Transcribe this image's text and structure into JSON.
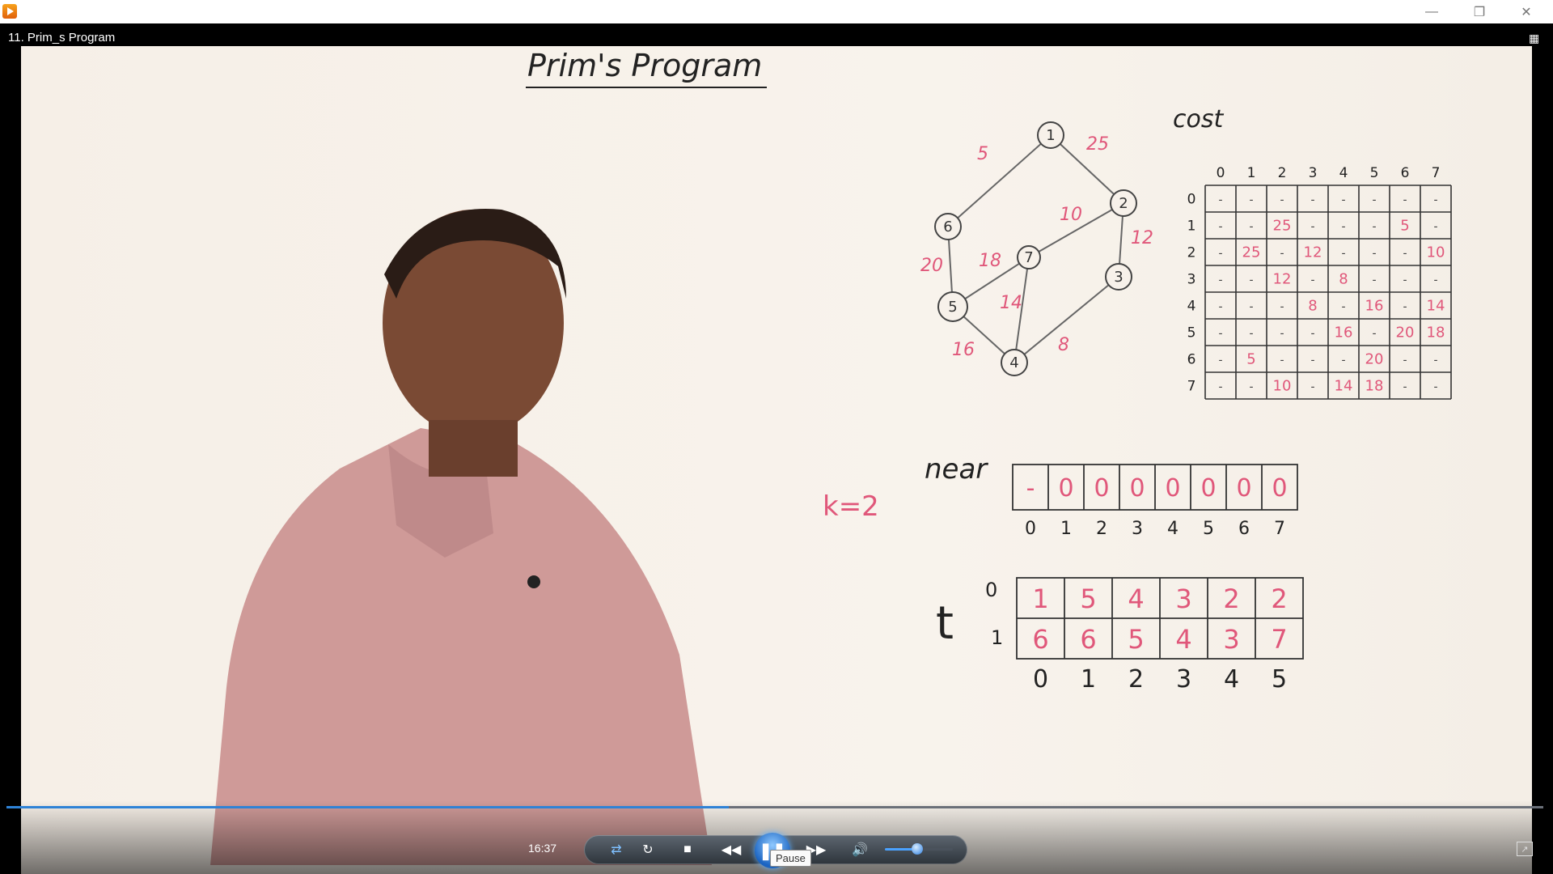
{
  "window": {
    "title_icon": "media-player-icon",
    "minimize_icon": "minimize-icon",
    "restore_icon": "restore-icon",
    "close_icon": "close-icon"
  },
  "video": {
    "title": "11. Prim_s Program",
    "progress_fraction": 0.47
  },
  "board": {
    "heading": "Prim's Program",
    "graph": {
      "vertices": [
        "1",
        "2",
        "3",
        "4",
        "5",
        "6",
        "7"
      ],
      "edges": [
        {
          "from": "1",
          "to": "6",
          "weight": "5"
        },
        {
          "from": "1",
          "to": "2",
          "weight": "25"
        },
        {
          "from": "2",
          "to": "7",
          "weight": "10"
        },
        {
          "from": "2",
          "to": "3",
          "weight": "12"
        },
        {
          "from": "6",
          "to": "5",
          "weight": "20"
        },
        {
          "from": "7",
          "to": "5",
          "weight": "18"
        },
        {
          "from": "7",
          "to": "4",
          "weight": "14"
        },
        {
          "from": "5",
          "to": "4",
          "weight": "16"
        },
        {
          "from": "3",
          "to": "4",
          "weight": "8"
        }
      ]
    },
    "cost": {
      "label": "cost",
      "col_headers": [
        "0",
        "1",
        "2",
        "3",
        "4",
        "5",
        "6",
        "7"
      ],
      "row_headers": [
        "0",
        "1",
        "2",
        "3",
        "4",
        "5",
        "6",
        "7"
      ],
      "rows": [
        [
          "-",
          "-",
          "-",
          "-",
          "-",
          "-",
          "-",
          "-"
        ],
        [
          "-",
          "-",
          "25",
          "-",
          "-",
          "-",
          "5",
          "-"
        ],
        [
          "-",
          "25",
          "-",
          "12",
          "-",
          "-",
          "-",
          "10"
        ],
        [
          "-",
          "-",
          "12",
          "-",
          "8",
          "-",
          "-",
          "-"
        ],
        [
          "-",
          "-",
          "-",
          "8",
          "-",
          "16",
          "-",
          "14"
        ],
        [
          "-",
          "-",
          "-",
          "-",
          "16",
          "-",
          "20",
          "18"
        ],
        [
          "-",
          "5",
          "-",
          "-",
          "-",
          "20",
          "-",
          "-"
        ],
        [
          "-",
          "-",
          "10",
          "-",
          "14",
          "18",
          "-",
          "-"
        ]
      ]
    },
    "near": {
      "label": "near",
      "values": [
        "-",
        "0",
        "0",
        "0",
        "0",
        "0",
        "0",
        "0"
      ],
      "indices": [
        "0",
        "1",
        "2",
        "3",
        "4",
        "5",
        "6",
        "7"
      ]
    },
    "k_note": "k=2",
    "t": {
      "label": "t",
      "row_labels": [
        "0",
        "1"
      ],
      "row0": [
        "1",
        "5",
        "4",
        "3",
        "2",
        "2"
      ],
      "row1": [
        "6",
        "6",
        "5",
        "4",
        "3",
        "7"
      ],
      "indices": [
        "0",
        "1",
        "2",
        "3",
        "4",
        "5"
      ]
    }
  },
  "player": {
    "time": "16:37",
    "tooltip": "Pause",
    "volume_fraction": 0.45,
    "buttons": {
      "shuffle": "shuffle-icon",
      "repeat": "repeat-icon",
      "stop": "stop-icon",
      "previous": "previous-icon",
      "play_pause": "pause-icon",
      "next": "next-icon",
      "volume": "volume-icon",
      "fullscreen": "fullscreen-icon"
    },
    "colors": {
      "seek_fill": "#2e82d6",
      "marker_red": "#e0577a",
      "ink": "#222222"
    }
  }
}
